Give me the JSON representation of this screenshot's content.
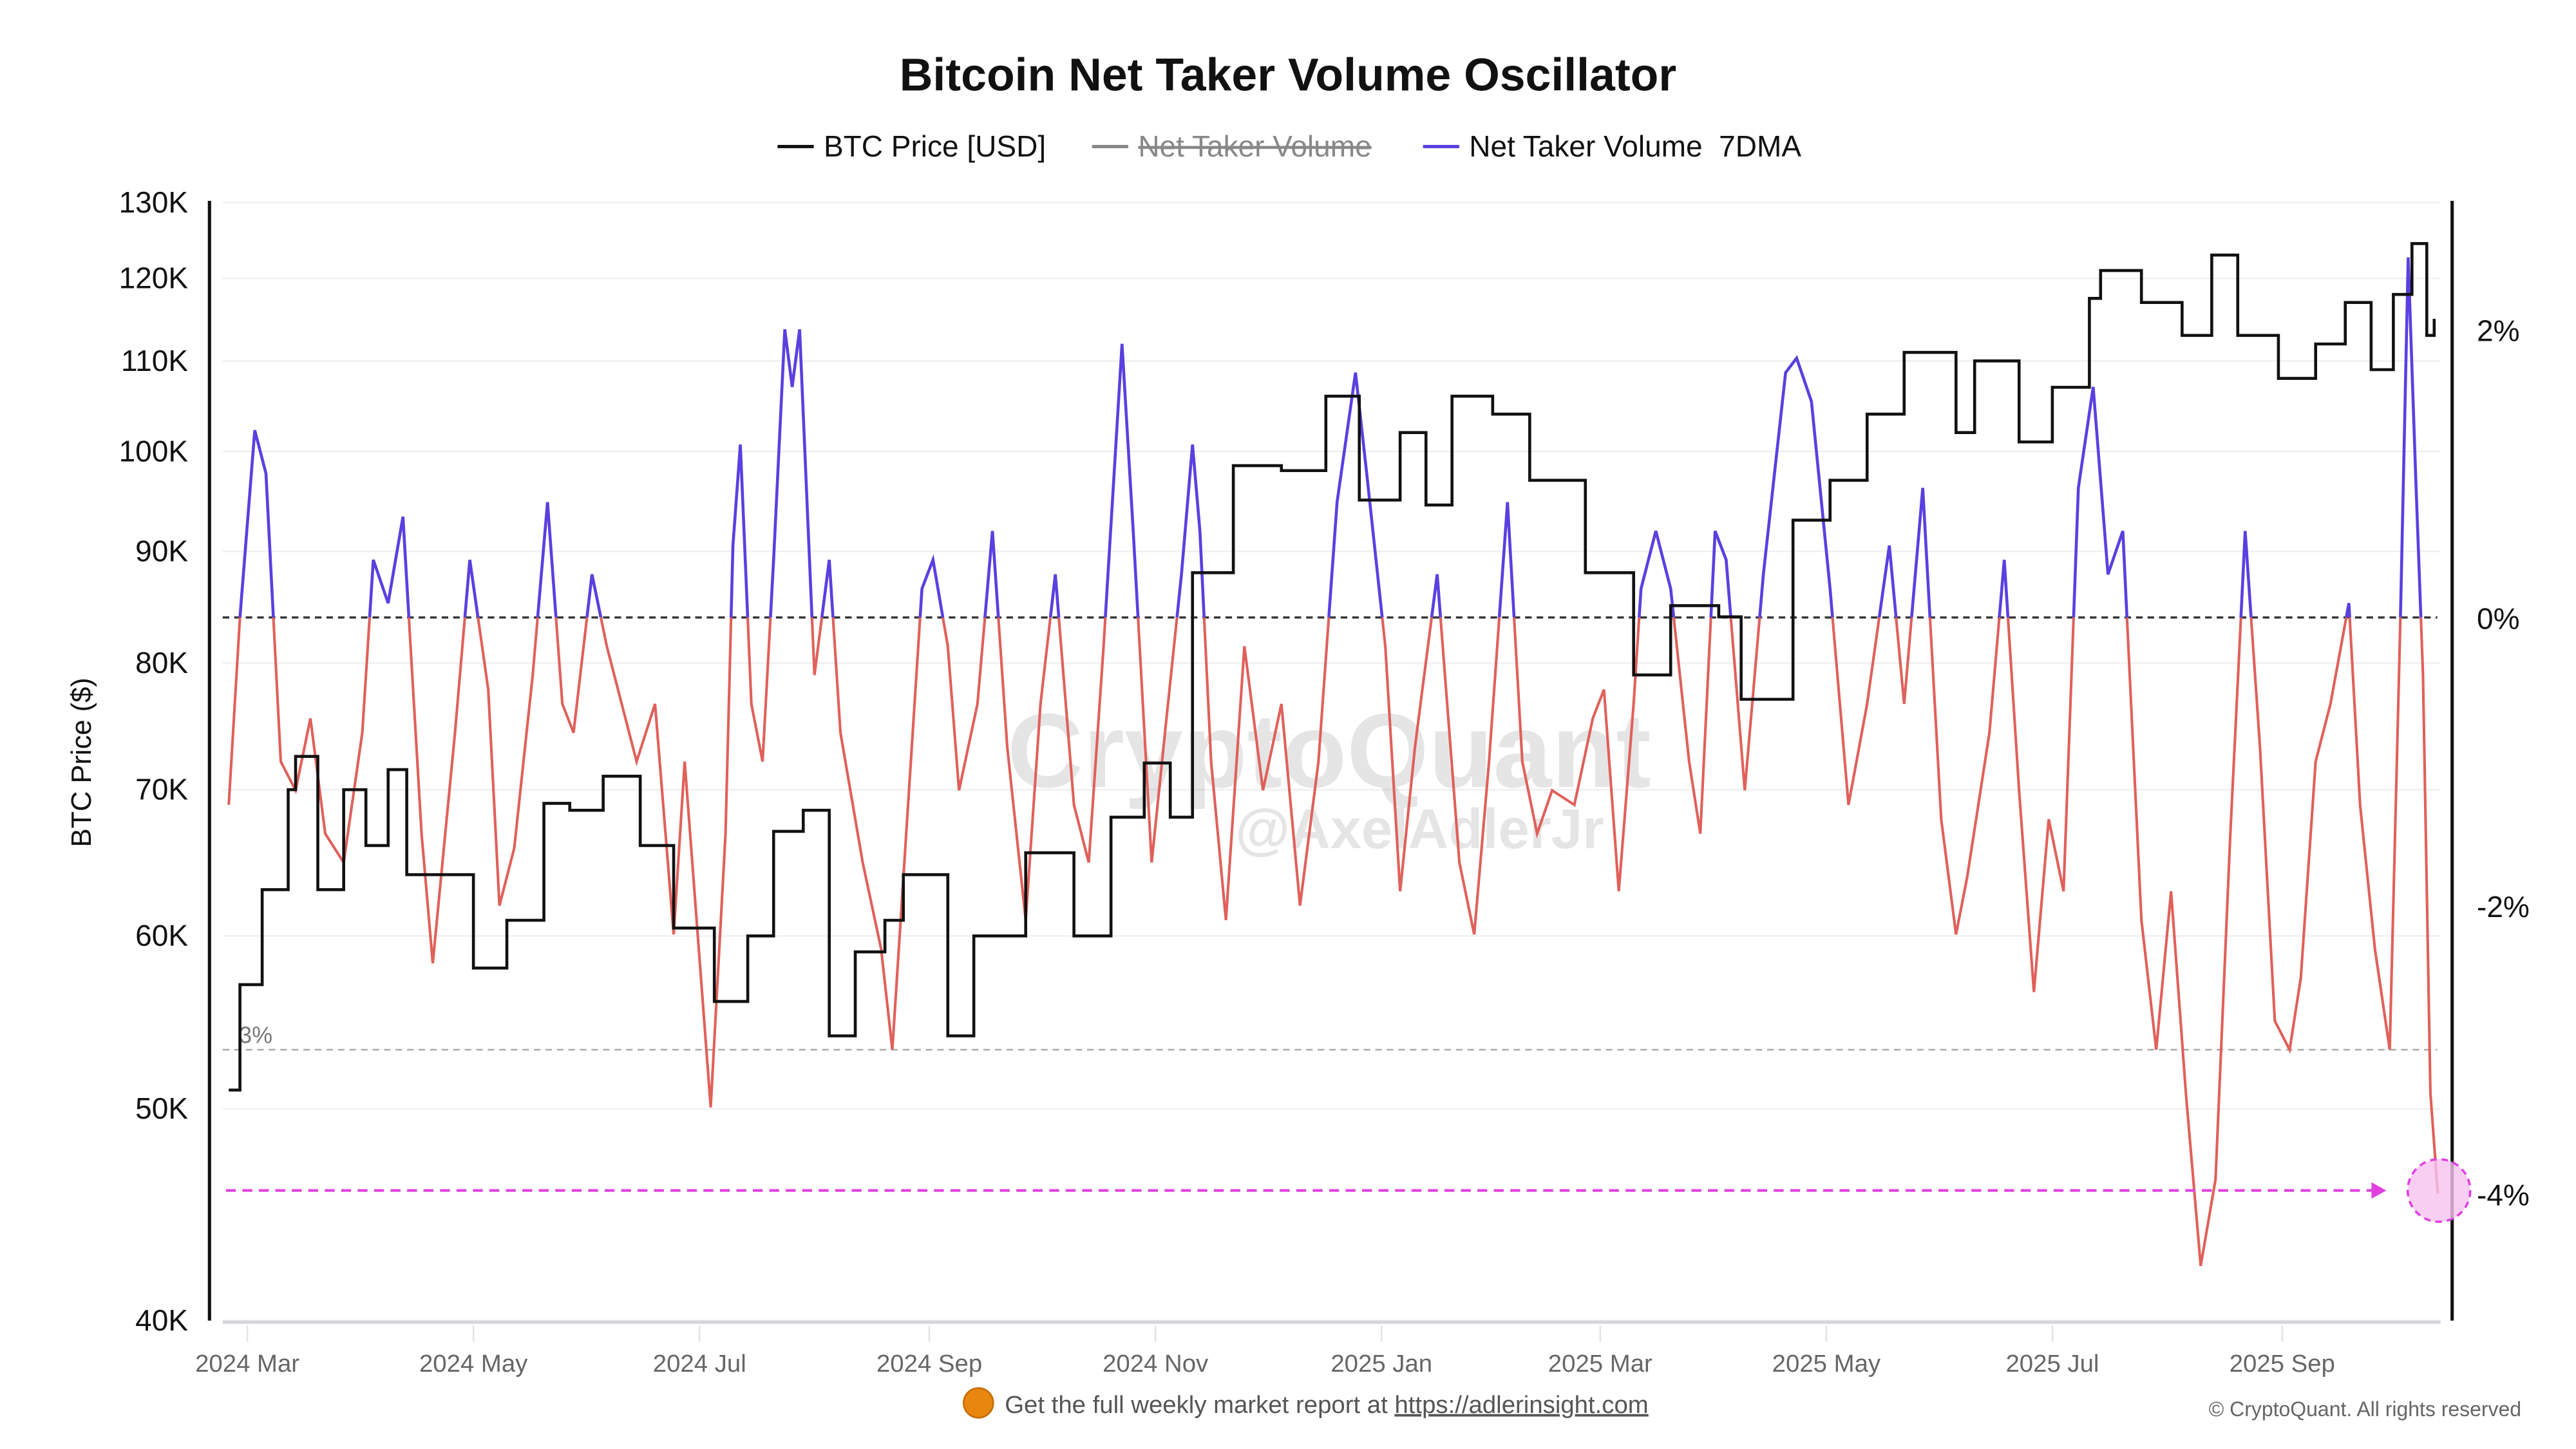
{
  "chart_data": {
    "type": "line",
    "title": "Bitcoin Net Taker Volume Oscillator",
    "legend": [
      {
        "name": "BTC Price [USD]",
        "color": "#111111",
        "hidden": false
      },
      {
        "name": "Net Taker Volume",
        "color": "#888888",
        "hidden": true
      },
      {
        "name": "Net Taker Volume  7DMA",
        "color": "#5b3fe0",
        "hidden": false
      }
    ],
    "legend_placement": "top-center",
    "ylabel_left": "BTC Price ($)",
    "y_left_scale": "log",
    "y_left_range": [
      40000,
      130000
    ],
    "y_left_ticks": [
      {
        "v": 130000,
        "label": "130K"
      },
      {
        "v": 120000,
        "label": "120K"
      },
      {
        "v": 110000,
        "label": "110K"
      },
      {
        "v": 100000,
        "label": "100K"
      },
      {
        "v": 90000,
        "label": "90K"
      },
      {
        "v": 80000,
        "label": "80K"
      },
      {
        "v": 70000,
        "label": "70K"
      },
      {
        "v": 60000,
        "label": "60K"
      },
      {
        "v": 50000,
        "label": "50K"
      },
      {
        "v": 40000,
        "label": "40K"
      }
    ],
    "y_right_ticks": [
      {
        "v": 2,
        "label": "2%"
      },
      {
        "v": 0,
        "label": "0%"
      },
      {
        "v": -2,
        "label": "-2%"
      },
      {
        "v": -4,
        "label": "-4%"
      }
    ],
    "x_ticks": [
      {
        "d": "2024-03-01",
        "label": "2024 Mar"
      },
      {
        "d": "2024-05-01",
        "label": "2024 May"
      },
      {
        "d": "2024-07-01",
        "label": "2024 Jul"
      },
      {
        "d": "2024-09-01",
        "label": "2024 Sep"
      },
      {
        "d": "2024-11-01",
        "label": "2024 Nov"
      },
      {
        "d": "2025-01-01",
        "label": "2025 Jan"
      },
      {
        "d": "2025-03-01",
        "label": "2025 Mar"
      },
      {
        "d": "2025-05-01",
        "label": "2025 May"
      },
      {
        "d": "2025-07-01",
        "label": "2025 Jul"
      },
      {
        "d": "2025-09-01",
        "label": "2025 Sep"
      }
    ],
    "grid": true,
    "annotations": {
      "threshold_label": "3%",
      "threshold_value": -3,
      "zero_line": 0,
      "highlight_level": -4,
      "highlight_color": "#e040e0"
    },
    "oscillator_colors": {
      "positive": "#5b3fe0",
      "negative": "#e0605a"
    },
    "price": [
      [
        "2024-02-25",
        51000
      ],
      [
        "2024-02-28",
        57000
      ],
      [
        "2024-03-05",
        63000
      ],
      [
        "2024-03-12",
        70000
      ],
      [
        "2024-03-14",
        72500
      ],
      [
        "2024-03-20",
        63000
      ],
      [
        "2024-03-27",
        70000
      ],
      [
        "2024-04-02",
        66000
      ],
      [
        "2024-04-08",
        71500
      ],
      [
        "2024-04-13",
        64000
      ],
      [
        "2024-04-19",
        64000
      ],
      [
        "2024-04-25",
        64000
      ],
      [
        "2024-05-01",
        58000
      ],
      [
        "2024-05-10",
        61000
      ],
      [
        "2024-05-20",
        69000
      ],
      [
        "2024-05-27",
        68500
      ],
      [
        "2024-06-05",
        71000
      ],
      [
        "2024-06-15",
        66000
      ],
      [
        "2024-06-24",
        60500
      ],
      [
        "2024-07-05",
        56000
      ],
      [
        "2024-07-14",
        60000
      ],
      [
        "2024-07-21",
        67000
      ],
      [
        "2024-07-29",
        68500
      ],
      [
        "2024-08-05",
        54000
      ],
      [
        "2024-08-12",
        59000
      ],
      [
        "2024-08-20",
        61000
      ],
      [
        "2024-08-25",
        64000
      ],
      [
        "2024-09-06",
        54000
      ],
      [
        "2024-09-13",
        60000
      ],
      [
        "2024-09-27",
        65500
      ],
      [
        "2024-10-10",
        60000
      ],
      [
        "2024-10-20",
        68000
      ],
      [
        "2024-10-29",
        72000
      ],
      [
        "2024-11-05",
        68000
      ],
      [
        "2024-11-11",
        88000
      ],
      [
        "2024-11-22",
        98500
      ],
      [
        "2024-12-05",
        98000
      ],
      [
        "2024-12-17",
        106000
      ],
      [
        "2024-12-26",
        95000
      ],
      [
        "2025-01-06",
        102000
      ],
      [
        "2025-01-13",
        94500
      ],
      [
        "2025-01-20",
        106000
      ],
      [
        "2025-01-31",
        104000
      ],
      [
        "2025-02-10",
        97000
      ],
      [
        "2025-02-25",
        88000
      ],
      [
        "2025-03-10",
        79000
      ],
      [
        "2025-03-20",
        85000
      ],
      [
        "2025-04-02",
        84000
      ],
      [
        "2025-04-08",
        77000
      ],
      [
        "2025-04-22",
        93000
      ],
      [
        "2025-05-02",
        97000
      ],
      [
        "2025-05-12",
        104000
      ],
      [
        "2025-05-22",
        111000
      ],
      [
        "2025-06-05",
        102000
      ],
      [
        "2025-06-10",
        110000
      ],
      [
        "2025-06-22",
        101000
      ],
      [
        "2025-07-01",
        107000
      ],
      [
        "2025-07-11",
        117500
      ],
      [
        "2025-07-14",
        121000
      ],
      [
        "2025-07-25",
        117000
      ],
      [
        "2025-08-05",
        113000
      ],
      [
        "2025-08-13",
        123000
      ],
      [
        "2025-08-20",
        113000
      ],
      [
        "2025-08-31",
        108000
      ],
      [
        "2025-09-10",
        112000
      ],
      [
        "2025-09-18",
        117000
      ],
      [
        "2025-09-25",
        109000
      ],
      [
        "2025-10-01",
        118000
      ],
      [
        "2025-10-06",
        124500
      ],
      [
        "2025-10-10",
        113000
      ],
      [
        "2025-10-12",
        115000
      ]
    ],
    "oscillator_7dma": [
      [
        "2024-02-25",
        -1.3
      ],
      [
        "2024-02-28",
        0
      ],
      [
        "2024-03-03",
        1.3
      ],
      [
        "2024-03-06",
        1.0
      ],
      [
        "2024-03-10",
        -1.0
      ],
      [
        "2024-03-14",
        -1.2
      ],
      [
        "2024-03-18",
        -0.7
      ],
      [
        "2024-03-22",
        -1.5
      ],
      [
        "2024-03-27",
        -1.7
      ],
      [
        "2024-04-01",
        -0.8
      ],
      [
        "2024-04-04",
        0.4
      ],
      [
        "2024-04-08",
        0.1
      ],
      [
        "2024-04-12",
        0.7
      ],
      [
        "2024-04-17",
        -1.5
      ],
      [
        "2024-04-20",
        -2.4
      ],
      [
        "2024-04-26",
        -0.8
      ],
      [
        "2024-04-30",
        0.4
      ],
      [
        "2024-05-05",
        -0.5
      ],
      [
        "2024-05-08",
        -2.0
      ],
      [
        "2024-05-12",
        -1.6
      ],
      [
        "2024-05-17",
        -0.4
      ],
      [
        "2024-05-21",
        0.8
      ],
      [
        "2024-05-25",
        -0.6
      ],
      [
        "2024-05-28",
        -0.8
      ],
      [
        "2024-06-02",
        0.3
      ],
      [
        "2024-06-06",
        -0.2
      ],
      [
        "2024-06-09",
        -0.5
      ],
      [
        "2024-06-14",
        -1.0
      ],
      [
        "2024-06-19",
        -0.6
      ],
      [
        "2024-06-24",
        -2.2
      ],
      [
        "2024-06-27",
        -1.0
      ],
      [
        "2024-07-04",
        -3.4
      ],
      [
        "2024-07-08",
        -1.5
      ],
      [
        "2024-07-10",
        0.5
      ],
      [
        "2024-07-12",
        1.2
      ],
      [
        "2024-07-15",
        -0.6
      ],
      [
        "2024-07-18",
        -1.0
      ],
      [
        "2024-07-21",
        0.4
      ],
      [
        "2024-07-24",
        2.0
      ],
      [
        "2024-07-26",
        1.6
      ],
      [
        "2024-07-28",
        2.0
      ],
      [
        "2024-08-01",
        -0.4
      ],
      [
        "2024-08-05",
        0.4
      ],
      [
        "2024-08-08",
        -0.8
      ],
      [
        "2024-08-14",
        -1.7
      ],
      [
        "2024-08-19",
        -2.3
      ],
      [
        "2024-08-22",
        -3.0
      ],
      [
        "2024-08-26",
        -1.4
      ],
      [
        "2024-08-30",
        0.2
      ],
      [
        "2024-09-02",
        0.4
      ],
      [
        "2024-09-06",
        -0.2
      ],
      [
        "2024-09-09",
        -1.2
      ],
      [
        "2024-09-14",
        -0.6
      ],
      [
        "2024-09-18",
        0.6
      ],
      [
        "2024-09-22",
        -0.9
      ],
      [
        "2024-09-27",
        -2.1
      ],
      [
        "2024-10-01",
        -0.6
      ],
      [
        "2024-10-05",
        0.3
      ],
      [
        "2024-10-10",
        -1.3
      ],
      [
        "2024-10-14",
        -1.7
      ],
      [
        "2024-10-18",
        -0.2
      ],
      [
        "2024-10-23",
        1.9
      ],
      [
        "2024-10-26",
        0.6
      ],
      [
        "2024-10-31",
        -1.7
      ],
      [
        "2024-11-04",
        -0.7
      ],
      [
        "2024-11-08",
        0.3
      ],
      [
        "2024-11-11",
        1.2
      ],
      [
        "2024-11-13",
        0.6
      ],
      [
        "2024-11-16",
        -1.0
      ],
      [
        "2024-11-20",
        -2.1
      ],
      [
        "2024-11-25",
        -0.2
      ],
      [
        "2024-11-30",
        -1.2
      ],
      [
        "2024-12-05",
        -0.6
      ],
      [
        "2024-12-10",
        -2.0
      ],
      [
        "2024-12-15",
        -1.0
      ],
      [
        "2024-12-20",
        0.8
      ],
      [
        "2024-12-25",
        1.7
      ],
      [
        "2024-12-28",
        1.0
      ],
      [
        "2025-01-02",
        -0.2
      ],
      [
        "2025-01-06",
        -1.9
      ],
      [
        "2025-01-10",
        -0.9
      ],
      [
        "2025-01-16",
        0.3
      ],
      [
        "2025-01-22",
        -1.7
      ],
      [
        "2025-01-26",
        -2.2
      ],
      [
        "2025-01-30",
        -1.0
      ],
      [
        "2025-02-04",
        0.8
      ],
      [
        "2025-02-08",
        -1.0
      ],
      [
        "2025-02-12",
        -1.5
      ],
      [
        "2025-02-16",
        -1.2
      ],
      [
        "2025-02-22",
        -1.3
      ],
      [
        "2025-02-27",
        -0.7
      ],
      [
        "2025-03-02",
        -0.5
      ],
      [
        "2025-03-06",
        -1.9
      ],
      [
        "2025-03-10",
        -0.6
      ],
      [
        "2025-03-12",
        0.2
      ],
      [
        "2025-03-16",
        0.6
      ],
      [
        "2025-03-20",
        0.2
      ],
      [
        "2025-03-25",
        -1.0
      ],
      [
        "2025-03-28",
        -1.5
      ],
      [
        "2025-04-01",
        0.6
      ],
      [
        "2025-04-04",
        0.4
      ],
      [
        "2025-04-09",
        -1.2
      ],
      [
        "2025-04-14",
        0.3
      ],
      [
        "2025-04-20",
        1.7
      ],
      [
        "2025-04-23",
        1.8
      ],
      [
        "2025-04-27",
        1.5
      ],
      [
        "2025-05-02",
        0.2
      ],
      [
        "2025-05-07",
        -1.3
      ],
      [
        "2025-05-12",
        -0.6
      ],
      [
        "2025-05-18",
        0.5
      ],
      [
        "2025-05-22",
        -0.6
      ],
      [
        "2025-05-27",
        0.9
      ],
      [
        "2025-06-01",
        -1.4
      ],
      [
        "2025-06-05",
        -2.2
      ],
      [
        "2025-06-08",
        -1.8
      ],
      [
        "2025-06-14",
        -0.8
      ],
      [
        "2025-06-18",
        0.4
      ],
      [
        "2025-06-22",
        -1.2
      ],
      [
        "2025-06-26",
        -2.6
      ],
      [
        "2025-06-30",
        -1.4
      ],
      [
        "2025-07-04",
        -1.9
      ],
      [
        "2025-07-08",
        0.9
      ],
      [
        "2025-07-12",
        1.6
      ],
      [
        "2025-07-16",
        0.3
      ],
      [
        "2025-07-20",
        0.6
      ],
      [
        "2025-07-25",
        -2.1
      ],
      [
        "2025-07-29",
        -3.0
      ],
      [
        "2025-08-02",
        -1.9
      ],
      [
        "2025-08-06",
        -3.3
      ],
      [
        "2025-08-10",
        -4.5
      ],
      [
        "2025-08-14",
        -3.9
      ],
      [
        "2025-08-18",
        -1.5
      ],
      [
        "2025-08-22",
        0.6
      ],
      [
        "2025-08-26",
        -0.9
      ],
      [
        "2025-08-30",
        -2.8
      ],
      [
        "2025-09-03",
        -3.0
      ],
      [
        "2025-09-06",
        -2.5
      ],
      [
        "2025-09-10",
        -1.0
      ],
      [
        "2025-09-14",
        -0.6
      ],
      [
        "2025-09-19",
        0.1
      ],
      [
        "2025-09-22",
        -1.3
      ],
      [
        "2025-09-26",
        -2.3
      ],
      [
        "2025-09-30",
        -3.0
      ],
      [
        "2025-10-03",
        0.1
      ],
      [
        "2025-10-05",
        2.5
      ],
      [
        "2025-10-07",
        1.0
      ],
      [
        "2025-10-09",
        -0.4
      ],
      [
        "2025-10-11",
        -3.3
      ],
      [
        "2025-10-13",
        -4.0
      ]
    ]
  },
  "watermark": {
    "brand": "CryptoQuant",
    "handle": "@AxelAdlerJr"
  },
  "footer": {
    "promo_text": "Get the full weekly market report at ",
    "promo_link": "https://adlerinsight.com",
    "copyright": "© CryptoQuant. All rights reserved"
  }
}
